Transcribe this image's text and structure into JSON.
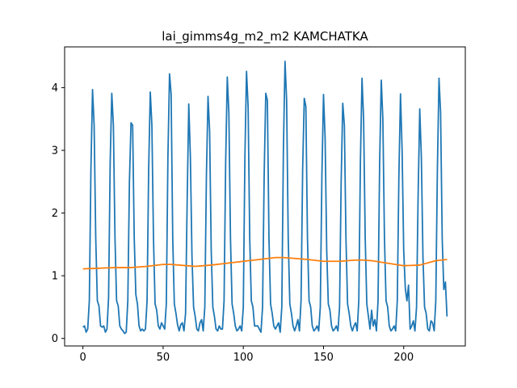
{
  "chart_data": {
    "type": "line",
    "title": "lai_gimms4g_m2_m2 KAMCHATKA",
    "xlabel": "",
    "ylabel": "",
    "xlim": [
      -11.4,
      238.4
    ],
    "ylim": [
      -0.12,
      4.65
    ],
    "xticks": [
      0,
      50,
      100,
      150,
      200
    ],
    "yticks": [
      0,
      1,
      2,
      3,
      4
    ],
    "grid": false,
    "series": [
      {
        "color": "#1f77b4",
        "x": [
          0,
          1,
          2,
          3,
          4,
          5,
          6,
          7,
          8,
          9,
          10,
          11,
          12,
          13,
          14,
          15,
          16,
          17,
          18,
          19,
          20,
          21,
          22,
          23,
          24,
          25,
          26,
          27,
          28,
          29,
          30,
          31,
          32,
          33,
          34,
          35,
          36,
          37,
          38,
          39,
          40,
          41,
          42,
          43,
          44,
          45,
          46,
          47,
          48,
          49,
          50,
          51,
          52,
          53,
          54,
          55,
          56,
          57,
          58,
          59,
          60,
          61,
          62,
          63,
          64,
          65,
          66,
          67,
          68,
          69,
          70,
          71,
          72,
          73,
          74,
          75,
          76,
          77,
          78,
          79,
          80,
          81,
          82,
          83,
          84,
          85,
          86,
          87,
          88,
          89,
          90,
          91,
          92,
          93,
          94,
          95,
          96,
          97,
          98,
          99,
          100,
          101,
          102,
          103,
          104,
          105,
          106,
          107,
          108,
          109,
          110,
          111,
          112,
          113,
          114,
          115,
          116,
          117,
          118,
          119,
          120,
          121,
          122,
          123,
          124,
          125,
          126,
          127,
          128,
          129,
          130,
          131,
          132,
          133,
          134,
          135,
          136,
          137,
          138,
          139,
          140,
          141,
          142,
          143,
          144,
          145,
          146,
          147,
          148,
          149,
          150,
          151,
          152,
          153,
          154,
          155,
          156,
          157,
          158,
          159,
          160,
          161,
          162,
          163,
          164,
          165,
          166,
          167,
          168,
          169,
          170,
          171,
          172,
          173,
          174,
          175,
          176,
          177,
          178,
          179,
          180,
          181,
          182,
          183,
          184,
          185,
          186,
          187,
          188,
          189,
          190,
          191,
          192,
          193,
          194,
          195,
          196,
          197,
          198,
          199,
          200,
          201,
          202,
          203,
          204,
          205,
          206,
          207,
          208,
          209,
          210,
          211,
          212,
          213,
          214,
          215,
          216,
          217,
          218,
          219,
          220,
          221,
          222,
          223,
          224,
          225,
          226,
          227
        ],
        "y": [
          0.18,
          0.2,
          0.1,
          0.15,
          0.6,
          2.7,
          3.97,
          3.4,
          1.6,
          0.6,
          0.52,
          0.2,
          0.18,
          0.2,
          0.1,
          0.15,
          0.65,
          2.8,
          3.91,
          3.4,
          1.6,
          0.6,
          0.52,
          0.2,
          0.15,
          0.12,
          0.08,
          0.1,
          0.6,
          2.5,
          3.44,
          3.4,
          1.6,
          0.7,
          0.55,
          0.2,
          0.12,
          0.15,
          0.12,
          0.15,
          0.6,
          2.7,
          3.93,
          3.4,
          1.6,
          0.55,
          0.45,
          0.2,
          0.15,
          0.25,
          0.2,
          0.15,
          0.55,
          2.9,
          4.22,
          3.9,
          1.6,
          0.55,
          0.4,
          0.22,
          0.12,
          0.22,
          0.25,
          0.12,
          0.4,
          2.2,
          3.74,
          2.9,
          1.3,
          0.5,
          0.35,
          0.15,
          0.12,
          0.25,
          0.3,
          0.12,
          0.5,
          2.6,
          3.86,
          3.3,
          1.4,
          0.5,
          0.35,
          0.15,
          0.12,
          0.2,
          0.15,
          0.15,
          0.6,
          2.8,
          4.17,
          3.6,
          1.6,
          0.55,
          0.4,
          0.2,
          0.12,
          0.15,
          0.2,
          0.12,
          0.5,
          2.9,
          4.26,
          3.7,
          1.6,
          0.6,
          0.5,
          0.2,
          0.2,
          0.2,
          0.15,
          0.1,
          0.5,
          2.6,
          3.91,
          3.8,
          1.6,
          0.55,
          0.4,
          0.2,
          0.15,
          0.2,
          0.25,
          0.1,
          0.5,
          3.0,
          4.42,
          3.8,
          1.6,
          0.55,
          0.4,
          0.2,
          0.12,
          0.2,
          0.3,
          0.12,
          0.6,
          2.7,
          3.83,
          3.7,
          1.6,
          0.6,
          0.5,
          0.2,
          0.12,
          0.15,
          0.2,
          0.12,
          0.5,
          2.6,
          3.89,
          3.2,
          1.4,
          0.55,
          0.45,
          0.2,
          0.12,
          0.15,
          0.2,
          0.12,
          0.5,
          2.5,
          3.75,
          3.4,
          1.6,
          0.55,
          0.4,
          0.2,
          0.12,
          0.2,
          0.25,
          0.12,
          0.6,
          2.8,
          4.15,
          3.5,
          1.6,
          0.55,
          0.35,
          0.15,
          0.45,
          0.2,
          0.3,
          0.12,
          0.6,
          2.8,
          4.12,
          3.5,
          1.6,
          0.6,
          0.5,
          0.2,
          0.12,
          0.15,
          0.2,
          0.12,
          0.6,
          2.6,
          3.9,
          3.0,
          1.4,
          0.8,
          0.6,
          0.85,
          0.15,
          0.2,
          0.28,
          0.12,
          0.5,
          2.3,
          3.66,
          2.9,
          1.3,
          0.5,
          0.4,
          0.15,
          0.12,
          0.28,
          0.25,
          0.12,
          0.6,
          2.7,
          4.15,
          3.6,
          1.6,
          0.78,
          0.9,
          0.35
        ]
      },
      {
        "color": "#ff7f0e",
        "x": [
          0,
          10,
          20,
          30,
          40,
          50,
          55,
          60,
          70,
          80,
          90,
          100,
          110,
          120,
          125,
          130,
          140,
          150,
          160,
          170,
          175,
          180,
          190,
          200,
          210,
          220,
          227
        ],
        "y": [
          1.11,
          1.12,
          1.13,
          1.13,
          1.15,
          1.18,
          1.18,
          1.17,
          1.15,
          1.17,
          1.2,
          1.23,
          1.26,
          1.29,
          1.29,
          1.28,
          1.26,
          1.23,
          1.23,
          1.25,
          1.25,
          1.24,
          1.2,
          1.16,
          1.17,
          1.24,
          1.26
        ]
      }
    ]
  }
}
